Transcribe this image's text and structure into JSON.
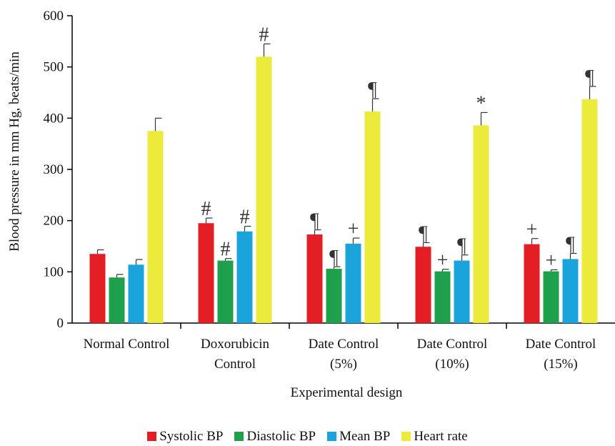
{
  "chart_data": {
    "type": "bar",
    "title": "",
    "xlabel": "Experimental design",
    "ylabel": "Blood pressure in mm Hg, beats/min",
    "ylim": [
      0,
      600
    ],
    "yticks": [
      0,
      100,
      200,
      300,
      400,
      500,
      600
    ],
    "grid": false,
    "legend_position": "bottom",
    "categories": [
      [
        "Normal Control"
      ],
      [
        "Doxorubicin",
        "Control"
      ],
      [
        "Date Control",
        "(5%)"
      ],
      [
        "Date Control",
        "(10%)"
      ],
      [
        "Date Control",
        "(15%)"
      ]
    ],
    "series": [
      {
        "name": "Systolic BP",
        "color": "#e31e24",
        "values": [
          135,
          195,
          173,
          149,
          154
        ],
        "errors": [
          8,
          10,
          9,
          8,
          11
        ],
        "annotations": [
          "",
          "#",
          "¶",
          "¶",
          "+"
        ]
      },
      {
        "name": "Diastolic BP",
        "color": "#1ea04c",
        "values": [
          89,
          122,
          106,
          101,
          101
        ],
        "errors": [
          6,
          4,
          4,
          4,
          3
        ],
        "annotations": [
          "",
          "#",
          "¶",
          "+",
          "+"
        ]
      },
      {
        "name": "Mean BP",
        "color": "#1ba3dc",
        "values": [
          114,
          179,
          155,
          122,
          125
        ],
        "errors": [
          10,
          10,
          11,
          11,
          11
        ],
        "annotations": [
          "",
          "#",
          "+",
          "¶",
          "¶"
        ]
      },
      {
        "name": "Heart rate",
        "color": "#ecea3a",
        "values": [
          375,
          520,
          413,
          386,
          437
        ],
        "errors": [
          25,
          25,
          25,
          25,
          25
        ],
        "annotations": [
          "",
          "#",
          "¶",
          "*",
          "¶"
        ]
      }
    ]
  }
}
